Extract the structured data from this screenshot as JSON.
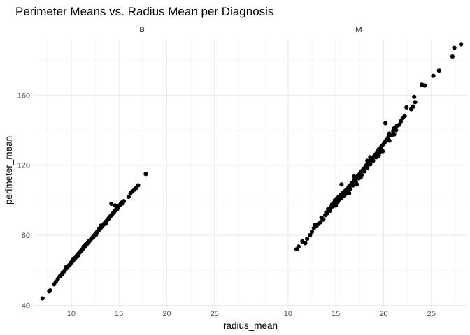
{
  "chart_data": {
    "type": "scatter",
    "title": "Perimeter Means vs. Radius Mean per Diagnosis",
    "xlabel": "radius_mean",
    "ylabel": "perimeter_mean",
    "xlim": [
      6.5,
      28.6
    ],
    "ylim": [
      39,
      192
    ],
    "x_ticks": [
      10,
      15,
      20,
      25
    ],
    "y_ticks": [
      40,
      80,
      120,
      160
    ],
    "x_tick_labels": [
      "10",
      "15",
      "20",
      "25"
    ],
    "y_tick_labels": [
      "40",
      "80",
      "120",
      "160"
    ],
    "grid": true,
    "point_color": "#000000",
    "facets": [
      {
        "label": "B",
        "points": [
          [
            7.0,
            44
          ],
          [
            7.7,
            48
          ],
          [
            7.8,
            48.5
          ],
          [
            8.2,
            52
          ],
          [
            8.4,
            53.5
          ],
          [
            8.6,
            55
          ],
          [
            8.8,
            56.5
          ],
          [
            9.0,
            57.5
          ],
          [
            9.1,
            58.5
          ],
          [
            9.3,
            59.5
          ],
          [
            9.4,
            60.5
          ],
          [
            9.6,
            61.5
          ],
          [
            9.7,
            62.5
          ],
          [
            9.8,
            63
          ],
          [
            9.9,
            63.5
          ],
          [
            10.0,
            64.5
          ],
          [
            10.1,
            65
          ],
          [
            10.2,
            65.5
          ],
          [
            10.3,
            66.5
          ],
          [
            10.4,
            67
          ],
          [
            10.5,
            67.5
          ],
          [
            10.6,
            68.5
          ],
          [
            10.7,
            69
          ],
          [
            10.8,
            69.8
          ],
          [
            10.9,
            70.3
          ],
          [
            11.0,
            71
          ],
          [
            11.1,
            71.5
          ],
          [
            11.2,
            72.2
          ],
          [
            11.3,
            72.8
          ],
          [
            11.4,
            73.5
          ],
          [
            11.5,
            74
          ],
          [
            11.6,
            74.8
          ],
          [
            11.7,
            75.4
          ],
          [
            11.8,
            76
          ],
          [
            11.9,
            76.7
          ],
          [
            12.0,
            77.2
          ],
          [
            12.1,
            78
          ],
          [
            12.2,
            78.5
          ],
          [
            12.3,
            79.2
          ],
          [
            12.4,
            79.8
          ],
          [
            12.5,
            80.5
          ],
          [
            12.6,
            81.1
          ],
          [
            12.7,
            81.8
          ],
          [
            12.8,
            82.4
          ],
          [
            12.9,
            83
          ],
          [
            13.0,
            83.7
          ],
          [
            13.1,
            84.3
          ],
          [
            13.2,
            85
          ],
          [
            13.3,
            85.6
          ],
          [
            13.4,
            86.3
          ],
          [
            13.5,
            86.9
          ],
          [
            13.6,
            87.6
          ],
          [
            13.7,
            88.2
          ],
          [
            13.8,
            88.9
          ],
          [
            13.9,
            89.5
          ],
          [
            14.0,
            90.2
          ],
          [
            14.1,
            90.8
          ],
          [
            14.2,
            91.5
          ],
          [
            14.3,
            92.1
          ],
          [
            14.4,
            92.8
          ],
          [
            14.5,
            93.4
          ],
          [
            14.6,
            94.1
          ],
          [
            14.7,
            94.7
          ],
          [
            14.8,
            95.5
          ],
          [
            14.9,
            96
          ],
          [
            15.0,
            96.8
          ],
          [
            15.1,
            97.3
          ],
          [
            15.2,
            98
          ],
          [
            15.3,
            98.7
          ],
          [
            15.5,
            99.5
          ],
          [
            14.2,
            98
          ],
          [
            14.6,
            97
          ],
          [
            13.6,
            86.5
          ],
          [
            12.9,
            83.8
          ],
          [
            11.9,
            77
          ],
          [
            11.3,
            73.5
          ],
          [
            10.7,
            68.5
          ],
          [
            10.2,
            66.5
          ],
          [
            9.5,
            62
          ],
          [
            12.3,
            78.8
          ],
          [
            13.1,
            85.5
          ],
          [
            12.6,
            80.4
          ],
          [
            11.5,
            74.7
          ],
          [
            14.8,
            94.8
          ],
          [
            15.4,
            98.2
          ],
          [
            16.0,
            102
          ],
          [
            16.2,
            104
          ],
          [
            16.4,
            105
          ],
          [
            16.6,
            106
          ],
          [
            16.8,
            107
          ],
          [
            17.0,
            108.5
          ],
          [
            17.8,
            115
          ]
        ]
      },
      {
        "label": "M",
        "points": [
          [
            10.9,
            72
          ],
          [
            11.1,
            73.5
          ],
          [
            11.5,
            76.5
          ],
          [
            11.8,
            75.5
          ],
          [
            12.0,
            78
          ],
          [
            12.3,
            80
          ],
          [
            12.5,
            82
          ],
          [
            12.7,
            84
          ],
          [
            12.8,
            86
          ],
          [
            13.0,
            85.5
          ],
          [
            13.2,
            86.5
          ],
          [
            13.4,
            87.5
          ],
          [
            13.5,
            90
          ],
          [
            13.7,
            89
          ],
          [
            13.9,
            91.5
          ],
          [
            14.0,
            93
          ],
          [
            14.1,
            92.5
          ],
          [
            14.2,
            95
          ],
          [
            14.4,
            94
          ],
          [
            14.5,
            96
          ],
          [
            14.6,
            97.5
          ],
          [
            14.7,
            96.5
          ],
          [
            14.8,
            98.5
          ],
          [
            14.9,
            100
          ],
          [
            15.0,
            97
          ],
          [
            15.0,
            99.5
          ],
          [
            15.1,
            101
          ],
          [
            15.2,
            99
          ],
          [
            15.3,
            102
          ],
          [
            15.4,
            100.5
          ],
          [
            15.5,
            103
          ],
          [
            15.6,
            101.5
          ],
          [
            15.7,
            104
          ],
          [
            15.8,
            102.5
          ],
          [
            15.9,
            105
          ],
          [
            16.0,
            103.5
          ],
          [
            16.1,
            106
          ],
          [
            16.2,
            104.5
          ],
          [
            16.3,
            107
          ],
          [
            16.4,
            108
          ],
          [
            16.5,
            106.5
          ],
          [
            16.6,
            109
          ],
          [
            16.7,
            110
          ],
          [
            16.8,
            108.5
          ],
          [
            16.9,
            111
          ],
          [
            17.0,
            112
          ],
          [
            17.1,
            110.5
          ],
          [
            17.2,
            113
          ],
          [
            17.3,
            114
          ],
          [
            17.4,
            112.5
          ],
          [
            17.5,
            115
          ],
          [
            17.6,
            116
          ],
          [
            17.7,
            114.5
          ],
          [
            17.8,
            117
          ],
          [
            17.9,
            118
          ],
          [
            18.0,
            116.5
          ],
          [
            18.1,
            119
          ],
          [
            18.2,
            120
          ],
          [
            18.3,
            118.5
          ],
          [
            18.4,
            121
          ],
          [
            18.5,
            122
          ],
          [
            18.6,
            120.5
          ],
          [
            18.7,
            123
          ],
          [
            18.8,
            124
          ],
          [
            18.9,
            122.5
          ],
          [
            19.0,
            125
          ],
          [
            19.1,
            126
          ],
          [
            19.2,
            124.5
          ],
          [
            19.3,
            127
          ],
          [
            19.4,
            128
          ],
          [
            19.5,
            129
          ],
          [
            19.6,
            127.5
          ],
          [
            19.7,
            130
          ],
          [
            19.8,
            131
          ],
          [
            20.0,
            132
          ],
          [
            20.1,
            133
          ],
          [
            20.3,
            134.5
          ],
          [
            20.5,
            136
          ],
          [
            20.6,
            138
          ],
          [
            20.8,
            137
          ],
          [
            21.0,
            139.5
          ],
          [
            21.1,
            141
          ],
          [
            21.3,
            140
          ],
          [
            21.4,
            142.5
          ],
          [
            21.6,
            143
          ],
          [
            21.8,
            145
          ],
          [
            22.0,
            147
          ],
          [
            22.2,
            148
          ],
          [
            22.4,
            153
          ],
          [
            22.9,
            152
          ],
          [
            23.1,
            153.5
          ],
          [
            23.3,
            156
          ],
          [
            23.2,
            159
          ],
          [
            24.0,
            166
          ],
          [
            24.3,
            165.5
          ],
          [
            25.2,
            171
          ],
          [
            25.8,
            174
          ],
          [
            27.2,
            182
          ],
          [
            27.4,
            187
          ],
          [
            28.1,
            189
          ],
          [
            16.4,
            104
          ],
          [
            17.2,
            109
          ],
          [
            18.3,
            122.5
          ],
          [
            19.9,
            128
          ],
          [
            20.2,
            144
          ],
          [
            15.6,
            109
          ],
          [
            16.9,
            113.5
          ],
          [
            18.6,
            124.5
          ],
          [
            19.5,
            125.5
          ],
          [
            21.1,
            137.5
          ],
          [
            17.6,
            113
          ],
          [
            20.6,
            134
          ]
        ]
      }
    ]
  }
}
